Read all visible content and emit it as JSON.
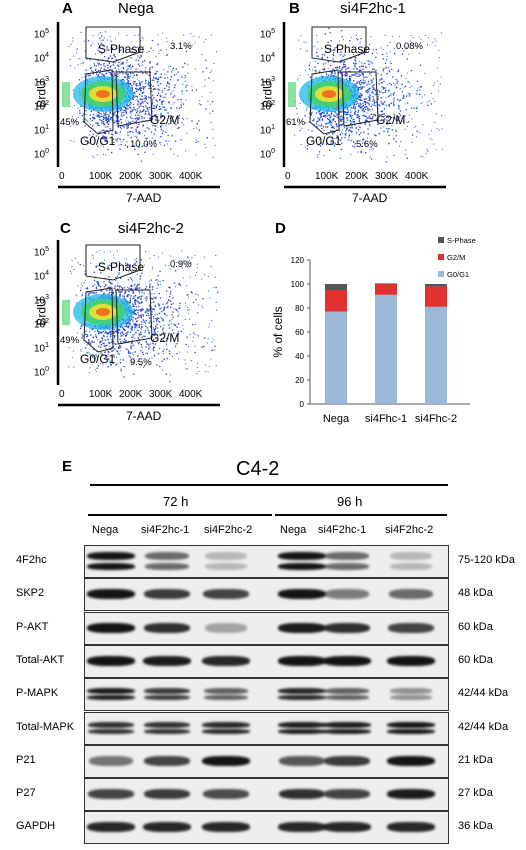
{
  "panels": {
    "A": {
      "letter": "A",
      "title": "Nega",
      "s_pct": "3.1%",
      "g01_pct": "45%",
      "g2m_pct": "10.0%"
    },
    "B": {
      "letter": "B",
      "title": "si4F2hc-1",
      "s_pct": "0.08%",
      "g01_pct": "61%",
      "g2m_pct": "5.6%"
    },
    "C": {
      "letter": "C",
      "title": "si4F2hc-2",
      "s_pct": "0.9%",
      "g01_pct": "49%",
      "g2m_pct": "9.5%"
    }
  },
  "flow_common": {
    "ylabel": "BrdU",
    "xlabel": "7-AAD",
    "s_gate": "S-Phase",
    "g01_gate": "G0/G1",
    "g2m_gate": "G2/M",
    "x_ticks": [
      "0",
      "100K",
      "200K",
      "300K",
      "400K"
    ],
    "y_ticks": [
      {
        "base": "10",
        "exp": "5"
      },
      {
        "base": "10",
        "exp": "4"
      },
      {
        "base": "10",
        "exp": "3"
      },
      {
        "base": "10",
        "exp": "2"
      },
      {
        "base": "10",
        "exp": "1"
      },
      {
        "base": "10",
        "exp": "0"
      }
    ]
  },
  "panel_D": {
    "letter": "D"
  },
  "chart_data": {
    "type": "bar",
    "stacked": true,
    "categories": [
      "Nega",
      "si4Fhc-1",
      "si4Fhc-2"
    ],
    "series": [
      {
        "name": "G0/G1",
        "values": [
          77,
          91,
          81
        ],
        "color": "#9bb8d9"
      },
      {
        "name": "G2/M",
        "values": [
          18,
          9,
          17
        ],
        "color": "#e03030"
      },
      {
        "name": "S-Phase",
        "values": [
          5,
          0.5,
          2
        ],
        "color": "#555555"
      }
    ],
    "ylabel": "% of cells",
    "ylim": [
      0,
      120
    ],
    "yticks": [
      0,
      20,
      40,
      60,
      80,
      100,
      120
    ],
    "legend_position": "top-right",
    "legend_order": [
      "S-Phase",
      "G2/M",
      "G0/G1"
    ],
    "grid": false
  },
  "panel_E": {
    "letter": "E",
    "cell_line": "C4-2",
    "timepoints": [
      {
        "label": "72 h"
      },
      {
        "label": "96 h"
      }
    ],
    "lanes": [
      "Nega",
      "si4F2hc-1",
      "si4F2hc-2",
      "Nega",
      "si4F2hc-1",
      "si4F2hc-2"
    ],
    "blots": [
      {
        "protein": "4F2hc",
        "mw": "75-120 kDa",
        "levels": [
          1,
          0.55,
          0.15,
          1,
          0.55,
          0.15
        ]
      },
      {
        "protein": "SKP2",
        "mw": "48 kDa",
        "levels": [
          1,
          0.8,
          0.75,
          1,
          0.45,
          0.55
        ]
      },
      {
        "protein": "P-AKT",
        "mw": "60 kDa",
        "levels": [
          1,
          0.85,
          0.25,
          0.95,
          0.85,
          0.75
        ]
      },
      {
        "protein": "Total-AKT",
        "mw": "60 kDa",
        "levels": [
          1,
          0.95,
          0.9,
          1,
          1,
          1
        ]
      },
      {
        "protein": "P-MAPK",
        "mw": "42/44 kDa",
        "levels": [
          0.95,
          0.8,
          0.6,
          0.9,
          0.6,
          0.35
        ]
      },
      {
        "protein": "Total-MAPK",
        "mw": "42/44 kDa",
        "levels": [
          0.85,
          0.85,
          0.9,
          0.95,
          0.95,
          1
        ]
      },
      {
        "protein": "P21",
        "mw": "21 kDa",
        "levels": [
          0.5,
          0.75,
          1,
          0.65,
          0.8,
          1
        ]
      },
      {
        "protein": "P27",
        "mw": "27 kDa",
        "levels": [
          0.75,
          0.8,
          0.7,
          0.85,
          0.75,
          0.95
        ]
      },
      {
        "protein": "GAPDH",
        "mw": "36 kDa",
        "levels": [
          0.9,
          0.9,
          0.9,
          0.9,
          0.9,
          0.9
        ]
      }
    ]
  },
  "colors": {
    "ink": "#000000",
    "blot_bg": "#eeeeee",
    "band": "#141414"
  }
}
